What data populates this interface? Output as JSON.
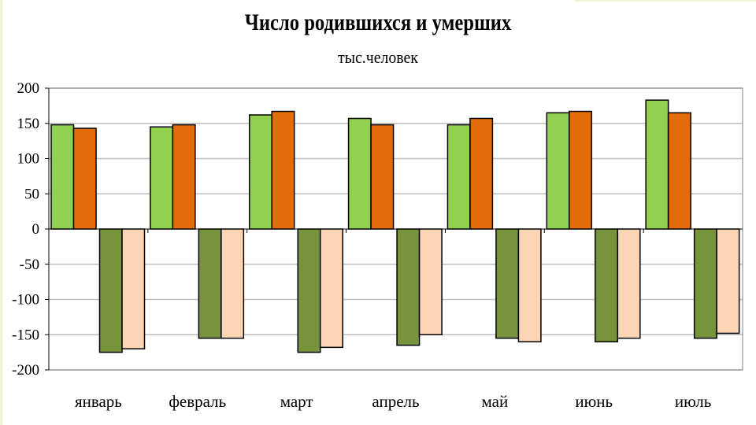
{
  "chart_data": {
    "type": "bar",
    "title": "Число родившихся и умерших",
    "subtitle": "тыс.человек",
    "categories": [
      "январь",
      "февраль",
      "март",
      "апрель",
      "май",
      "июнь",
      "июль"
    ],
    "ylim": [
      -200,
      200
    ],
    "yticks": [
      200,
      150,
      100,
      50,
      0,
      -50,
      -100,
      -150,
      -200
    ],
    "grid": true,
    "legend": "none",
    "series": [
      {
        "color": "#92d050",
        "values": [
          148,
          145,
          162,
          157,
          148,
          165,
          183
        ]
      },
      {
        "color": "#e36c09",
        "values": [
          143,
          148,
          167,
          148,
          157,
          167,
          165
        ]
      },
      {
        "color": "#77933c",
        "values": [
          -175,
          -155,
          -175,
          -165,
          -155,
          -160,
          -155
        ]
      },
      {
        "color": "#fcd5b4",
        "values": [
          -170,
          -155,
          -168,
          -150,
          -160,
          -155,
          -148
        ]
      }
    ]
  }
}
